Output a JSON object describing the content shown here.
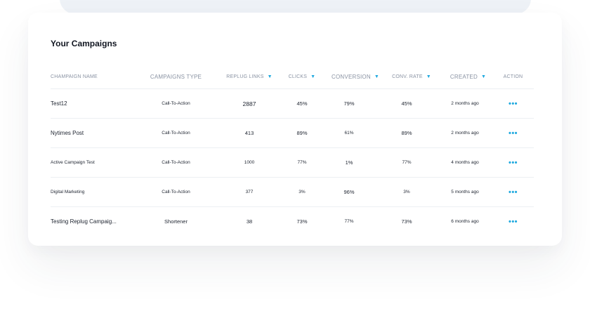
{
  "title": "Your Campaigns",
  "headers": {
    "name": "CHAMPAIGN NAME",
    "type": "CAMPAIGNS TYPE",
    "links": "REPLUG LINKS",
    "clicks": "CLICKS",
    "conversion": "CONVERSION",
    "rate": "CONV. RATE",
    "created": "CREATED",
    "action": "ACTION"
  },
  "rows": [
    {
      "name": "Test12",
      "type": "Call-To-Action",
      "links": "2887",
      "clicks": "45%",
      "conversion": "79%",
      "rate": "45%",
      "created": "2 months ago",
      "action": "•••"
    },
    {
      "name": "Nytimes Post",
      "type": "Call-To-Action",
      "links": "413",
      "clicks": "89%",
      "conversion": "61%",
      "rate": "89%",
      "created": "2 months ago",
      "action": "•••"
    },
    {
      "name": "Active Campaign Test",
      "type": "Call-To-Action",
      "links": "1000",
      "clicks": "77%",
      "conversion": "1%",
      "rate": "77%",
      "created": "4 months ago",
      "action": "•••"
    },
    {
      "name": "Digital Marketing",
      "type": "Call-To-Action",
      "links": "377",
      "clicks": "3%",
      "conversion": "96%",
      "rate": "3%",
      "created": "5 months ago",
      "action": "•••"
    },
    {
      "name": "Testing Replug Campaig...",
      "type": "Shortener",
      "links": "38",
      "clicks": "73%",
      "conversion": "77%",
      "rate": "73%",
      "created": "6 months ago",
      "action": "•••"
    }
  ],
  "colors": {
    "accent": "#1fa9df",
    "text": "#1e2430",
    "muted": "#8a93a3"
  }
}
